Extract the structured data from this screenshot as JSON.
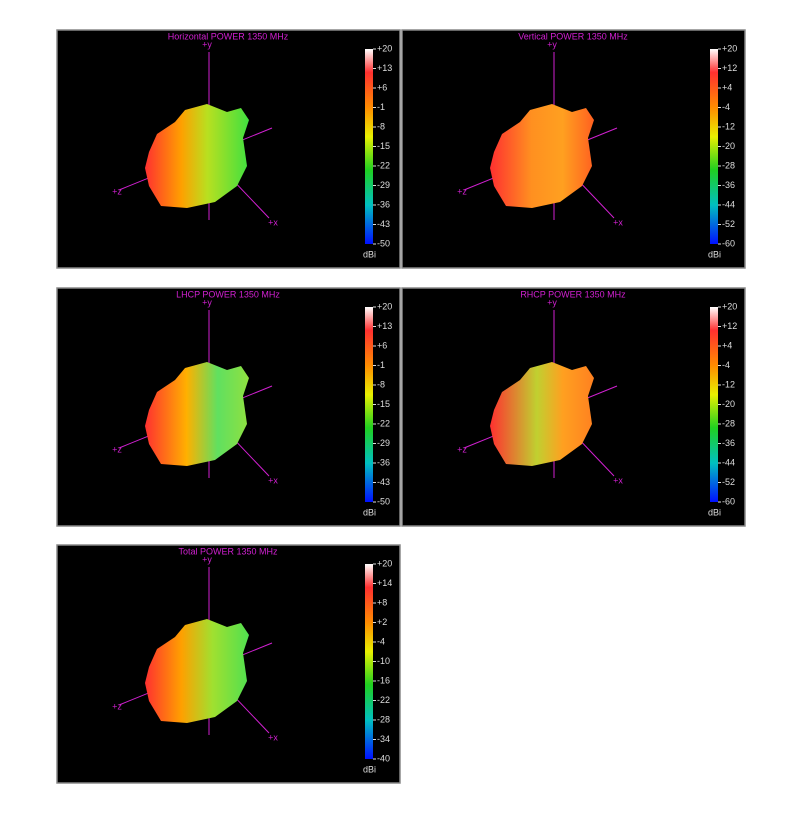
{
  "chart_data": [
    {
      "type": "pattern3d",
      "title": "Horizontal POWER 1350  MHz",
      "axis_labels": {
        "y": "+y",
        "z": "+z",
        "x": "+x"
      },
      "colorbar": {
        "clim": [
          -50,
          20
        ],
        "label": "dBi",
        "ticks": [
          {
            "value": 20,
            "label": "+20"
          },
          {
            "value": 13,
            "label": "+13"
          },
          {
            "value": 6,
            "label": "+6"
          },
          -1,
          -8,
          -15,
          -22,
          -29,
          -36,
          -43,
          -50
        ]
      }
    },
    {
      "type": "pattern3d",
      "title": "Vertical POWER 1350  MHz",
      "axis_labels": {
        "y": "+y",
        "z": "+z",
        "x": "+x"
      },
      "colorbar": {
        "clim": [
          -60,
          20
        ],
        "label": "dBi",
        "ticks": [
          {
            "value": 20,
            "label": "+20"
          },
          {
            "value": 12,
            "label": "+12"
          },
          {
            "value": 4,
            "label": "+4"
          },
          -4,
          -12,
          -20,
          -28,
          -36,
          -44,
          -52,
          -60
        ]
      }
    },
    {
      "type": "pattern3d",
      "title": "LHCP POWER 1350  MHz",
      "axis_labels": {
        "y": "+y",
        "z": "+z",
        "x": "+x"
      },
      "colorbar": {
        "clim": [
          -50,
          20
        ],
        "label": "dBi",
        "ticks": [
          {
            "value": 20,
            "label": "+20"
          },
          {
            "value": 13,
            "label": "+13"
          },
          {
            "value": 6,
            "label": "+6"
          },
          -1,
          -8,
          -15,
          -22,
          -29,
          -36,
          -43,
          -50
        ]
      }
    },
    {
      "type": "pattern3d",
      "title": "RHCP POWER 1350  MHz",
      "axis_labels": {
        "y": "+y",
        "z": "+z",
        "x": "+x"
      },
      "colorbar": {
        "clim": [
          -60,
          20
        ],
        "label": "dBi",
        "ticks": [
          {
            "value": 20,
            "label": "+20"
          },
          {
            "value": 12,
            "label": "+12"
          },
          {
            "value": 4,
            "label": "+4"
          },
          -4,
          -12,
          -20,
          -28,
          -36,
          -44,
          -52,
          -60
        ]
      }
    },
    {
      "type": "pattern3d",
      "title": "Total POWER 1350  MHz",
      "axis_labels": {
        "y": "+y",
        "z": "+z",
        "x": "+x"
      },
      "colorbar": {
        "clim": [
          -40,
          20
        ],
        "label": "dBi",
        "ticks": [
          {
            "value": 20,
            "label": "+20"
          },
          {
            "value": 14,
            "label": "+14"
          },
          {
            "value": 8,
            "label": "+8"
          },
          {
            "value": 2,
            "label": "+2"
          },
          -4,
          -10,
          -16,
          -22,
          -28,
          -34,
          -40
        ]
      }
    }
  ]
}
